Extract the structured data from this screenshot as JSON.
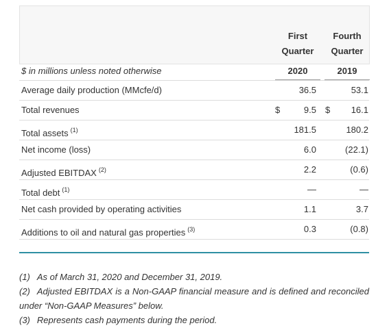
{
  "header": {
    "columns": [
      {
        "line1": "First",
        "line2": "Quarter",
        "year": "2020"
      },
      {
        "line1": "Fourth",
        "line2": "Quarter",
        "year": "2019"
      }
    ],
    "note": "$ in millions unless noted otherwise"
  },
  "table": {
    "rows": [
      {
        "label": "Average daily production (MMcfe/d)",
        "q1": "36.5",
        "q4": "53.1"
      },
      {
        "label": "Total revenues",
        "q1_currency": "$",
        "q1": "9.5",
        "q4_currency": "$",
        "q4": "16.1"
      },
      {
        "label": "Total assets",
        "sup": "(1)",
        "q1": "181.5",
        "q4": "180.2"
      },
      {
        "label": "Net income (loss)",
        "q1": "6.0",
        "q4": "(22.1)"
      },
      {
        "label": "Adjusted EBITDAX",
        "sup": "(2)",
        "q1": "2.2",
        "q4": "(0.6)"
      },
      {
        "label": "Total debt",
        "sup": "(1)",
        "q1": "—",
        "q4": "—"
      },
      {
        "label": "Net cash provided by operating activities",
        "q1": "1.1",
        "q4": "3.7"
      },
      {
        "label": "Additions to oil and natural gas properties",
        "sup": "(3)",
        "q1": "0.3",
        "q4": "(0.8)"
      }
    ]
  },
  "footnotes": [
    {
      "marker": "(1)",
      "text": "As of March 31, 2020 and December 31, 2019."
    },
    {
      "marker": "(2)",
      "text": "Adjusted EBITDAX is a Non-GAAP financial measure and is defined and reconciled under “Non-GAAP Measures” below."
    },
    {
      "marker": "(3)",
      "text": "Represents cash payments during the period."
    }
  ]
}
